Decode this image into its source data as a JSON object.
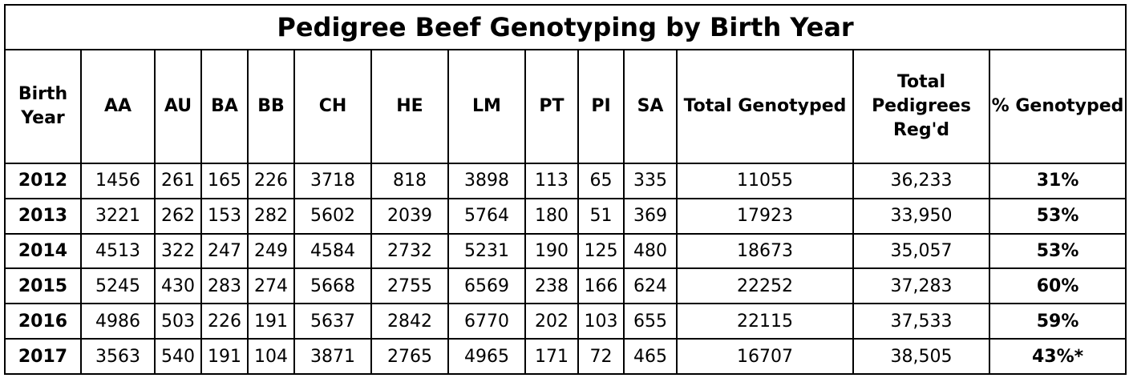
{
  "table": {
    "title": "Pedigree Beef Genotyping by Birth Year",
    "header": [
      "Birth Year",
      "AA",
      "AU",
      "BA",
      "BB",
      "CH",
      "HE",
      "LM",
      "PT",
      "PI",
      "SA",
      "Total Genotyped",
      "Total Pedigrees Reg'd",
      "% Genotyped"
    ],
    "rows": [
      [
        "2012",
        "1456",
        "261",
        "165",
        "226",
        "3718",
        "818",
        "3898",
        "113",
        "65",
        "335",
        "11055",
        "36,233",
        "31%"
      ],
      [
        "2013",
        "3221",
        "262",
        "153",
        "282",
        "5602",
        "2039",
        "5764",
        "180",
        "51",
        "369",
        "17923",
        "33,950",
        "53%"
      ],
      [
        "2014",
        "4513",
        "322",
        "247",
        "249",
        "4584",
        "2732",
        "5231",
        "190",
        "125",
        "480",
        "18673",
        "35,057",
        "53%"
      ],
      [
        "2015",
        "5245",
        "430",
        "283",
        "274",
        "5668",
        "2755",
        "6569",
        "238",
        "166",
        "624",
        "22252",
        "37,283",
        "60%"
      ],
      [
        "2016",
        "4986",
        "503",
        "226",
        "191",
        "5637",
        "2842",
        "6770",
        "202",
        "103",
        "655",
        "22115",
        "37,533",
        "59%"
      ],
      [
        "2017",
        "3563",
        "540",
        "191",
        "104",
        "3871",
        "2765",
        "4965",
        "171",
        "72",
        "465",
        "16707",
        "38,505",
        "43%*"
      ]
    ]
  }
}
